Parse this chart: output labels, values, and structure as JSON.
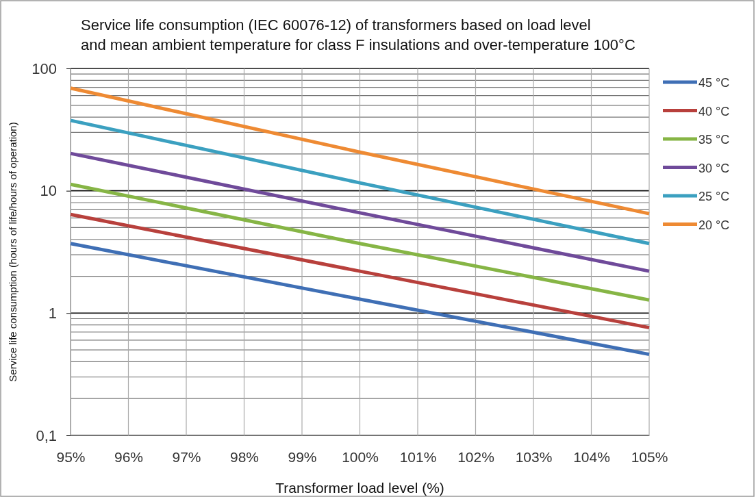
{
  "chart_data": {
    "type": "line",
    "title": "Service life consumption (IEC 60076-12) of transformers based on load level and mean ambient temperature for class F insulations and over-temperature 100°C",
    "xlabel": "Transformer load level (%)",
    "ylabel": "Service life consumption (hours of life/hours of operation)",
    "x": [
      95,
      100,
      105
    ],
    "xlim": [
      95,
      105
    ],
    "xticks": [
      {
        "value": 95,
        "label": "95%"
      },
      {
        "value": 96,
        "label": "96%"
      },
      {
        "value": 97,
        "label": "97%"
      },
      {
        "value": 98,
        "label": "98%"
      },
      {
        "value": 99,
        "label": "99%"
      },
      {
        "value": 100,
        "label": "100%"
      },
      {
        "value": 101,
        "label": "101%"
      },
      {
        "value": 102,
        "label": "102%"
      },
      {
        "value": 103,
        "label": "103%"
      },
      {
        "value": 104,
        "label": "104%"
      },
      {
        "value": 105,
        "label": "105%"
      }
    ],
    "log": true,
    "ylim": [
      0.1,
      100
    ],
    "yticks": [
      {
        "value": 0.1,
        "label": "0,1"
      },
      1,
      10,
      100
    ],
    "grid": true,
    "legend": "right",
    "marker": "none",
    "line_style": "solid",
    "series": [
      {
        "name": "45 °C",
        "color": "#3f6fb5",
        "values": [
          3.7,
          1.3,
          0.46
        ]
      },
      {
        "name": "40 °C",
        "color": "#b8403c",
        "values": [
          6.4,
          2.2,
          0.76
        ]
      },
      {
        "name": "35 °C",
        "color": "#86b545",
        "values": [
          11.3,
          3.7,
          1.28
        ]
      },
      {
        "name": "30 °C",
        "color": "#6f4a9a",
        "values": [
          20.2,
          6.6,
          2.2
        ]
      },
      {
        "name": "25 °C",
        "color": "#3ba0c0",
        "values": [
          37.6,
          11.6,
          3.7
        ]
      },
      {
        "name": "20 °C",
        "color": "#ee8a33",
        "values": [
          69,
          20.7,
          6.5
        ]
      }
    ]
  }
}
